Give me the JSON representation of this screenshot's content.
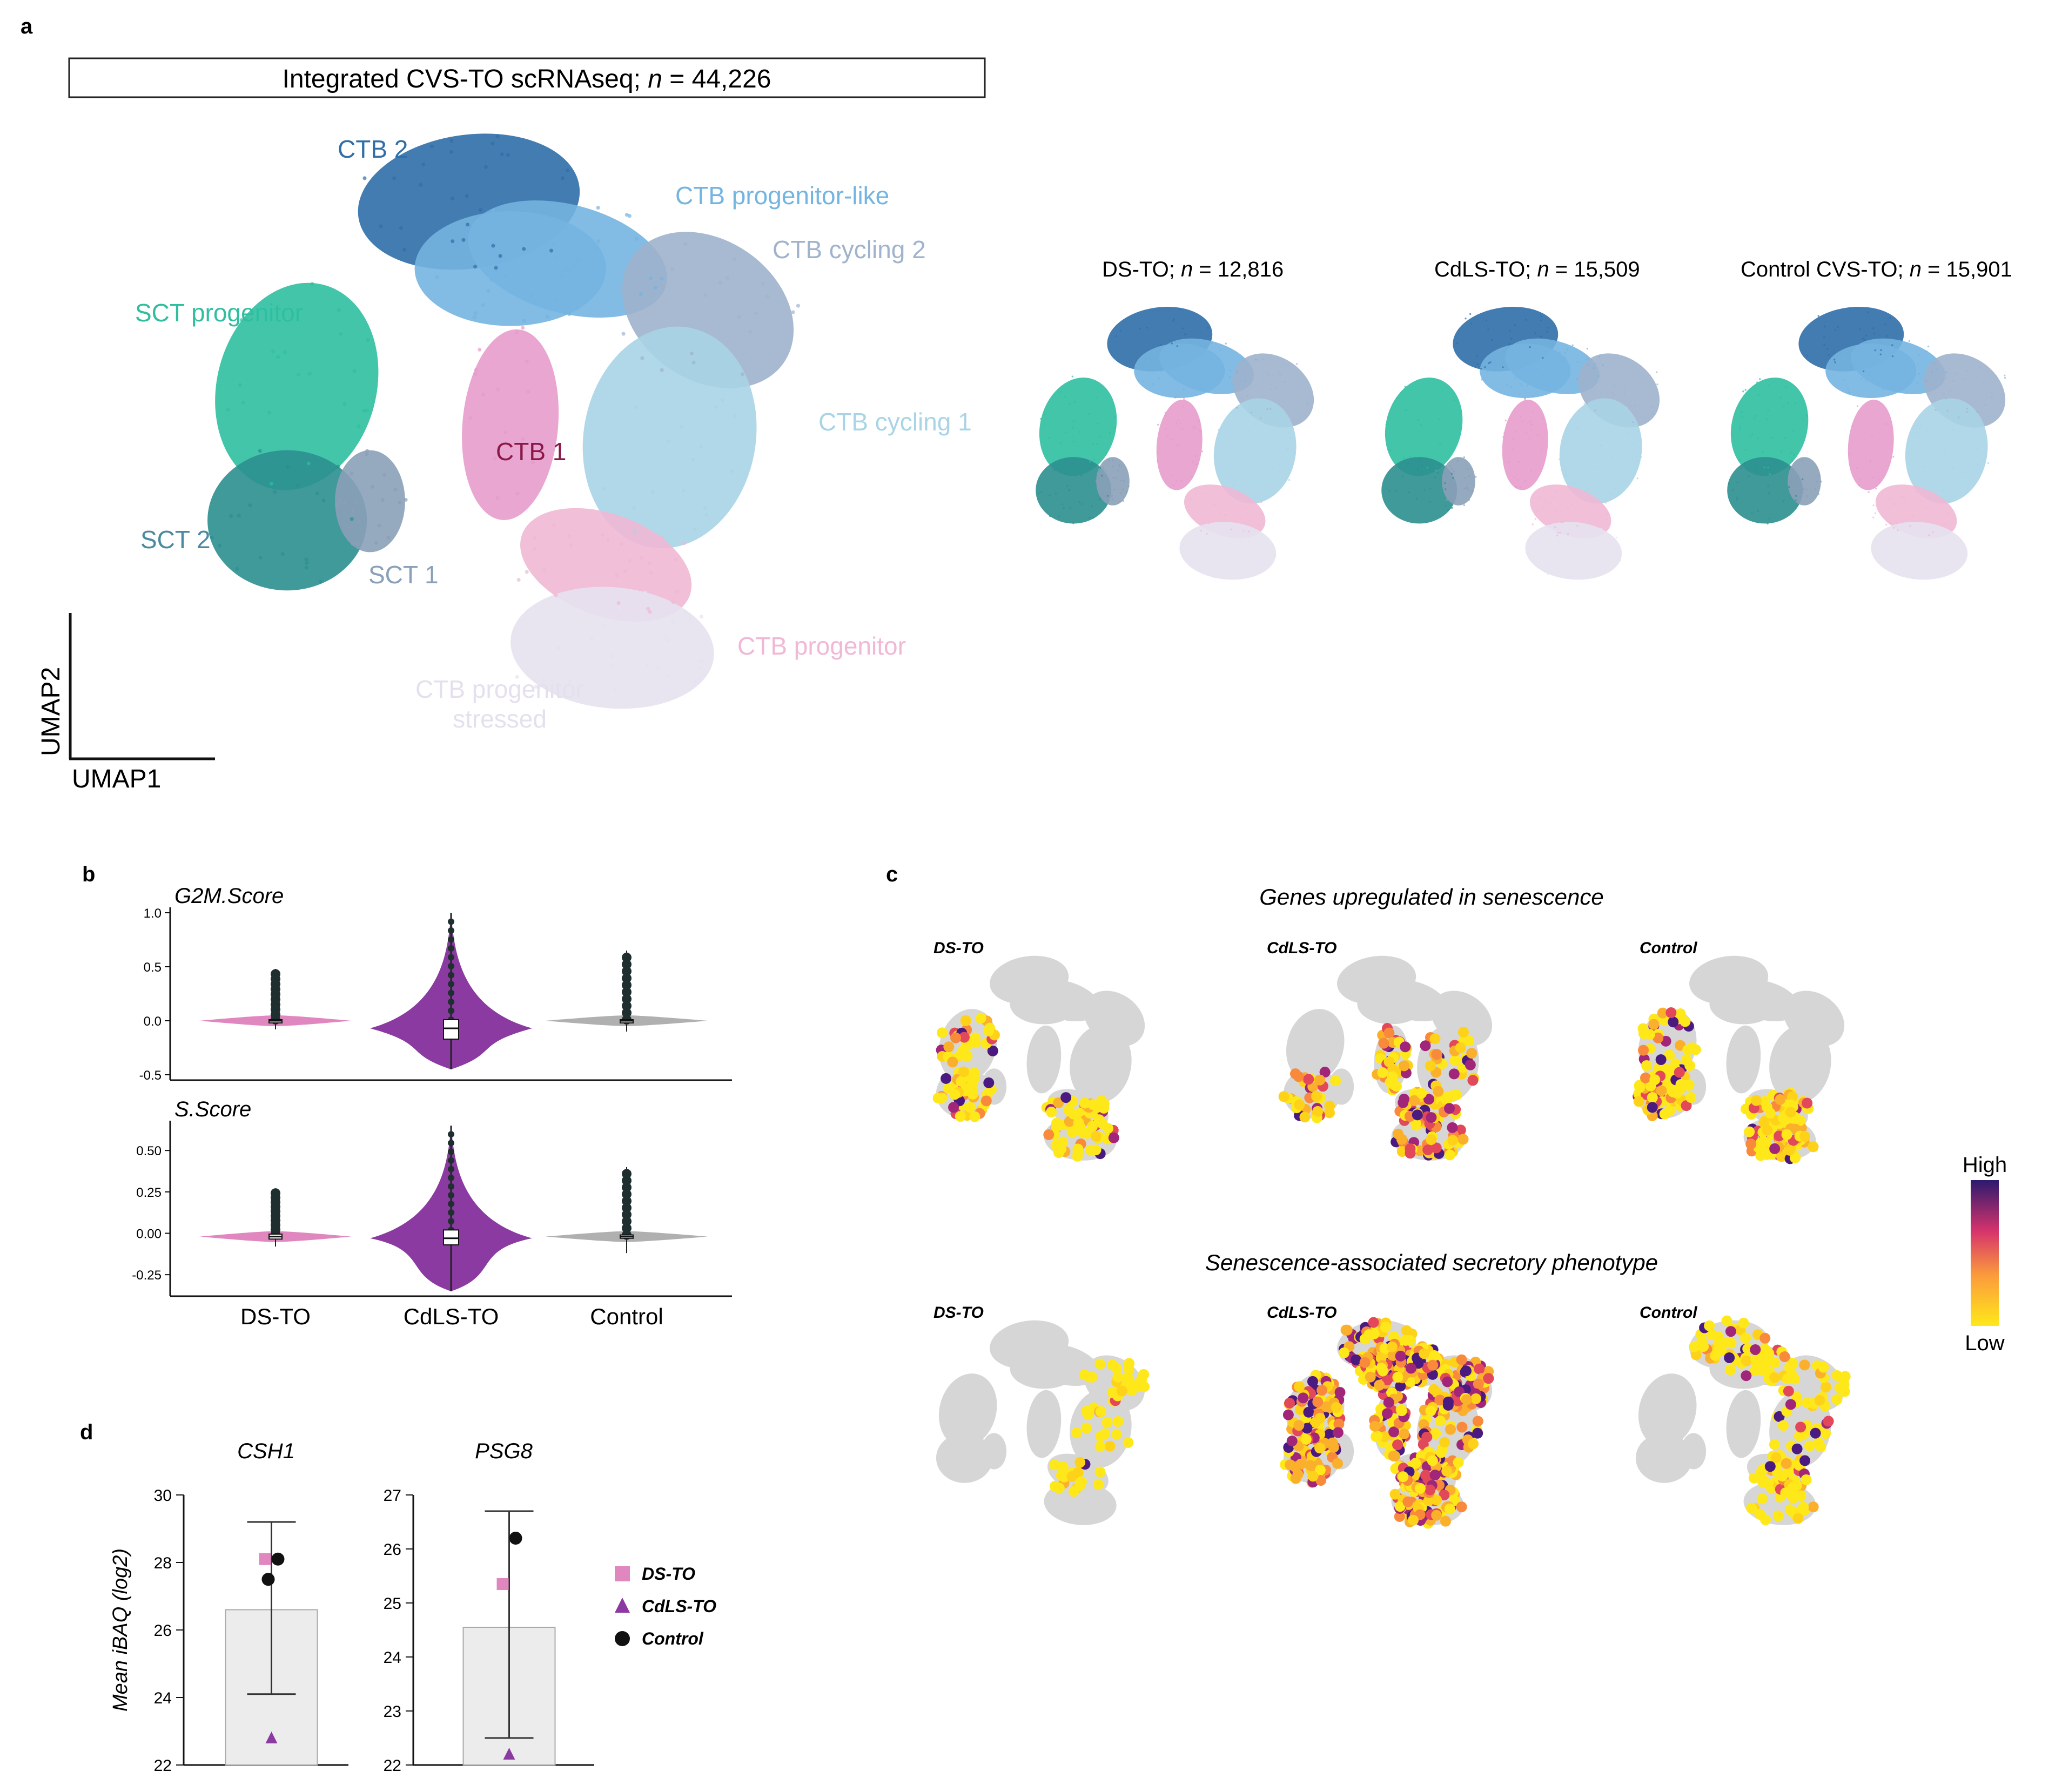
{
  "panel_labels": {
    "a": "a",
    "b": "b",
    "c": "c",
    "d": "d"
  },
  "colors": {
    "CTB 2": "#2f6ea8",
    "CTB progenitor-like": "#74b4e0",
    "CTB cycling 2": "#9fb3cc",
    "CTB cycling 1": "#a8d4e6",
    "SCT progenitor": "#2fbfa0",
    "SCT 2": "#2c8f8f",
    "SCT 1": "#8aa0b8",
    "CTB 1": "#e59ccb",
    "CTB progenitor": "#f0b8d4",
    "CTB progenitor stressed": "#e6e2f0",
    "DS-TO": "#e087c0",
    "CdLS-TO": "#8a3aa0",
    "Control": "#b0b0b0",
    "grey_cells": "#d6d6d6"
  },
  "panel_a": {
    "title_text": "Integrated CVS-TO scRNAseq; ",
    "title_n": "n",
    "title_value": " = 44,226",
    "axis_x": "UMAP1",
    "axis_y": "UMAP2",
    "clusters": [
      {
        "name": "CTB 2",
        "label": "CTB 2"
      },
      {
        "name": "CTB progenitor-like",
        "label": "CTB progenitor-like"
      },
      {
        "name": "CTB cycling 2",
        "label": "CTB cycling 2"
      },
      {
        "name": "SCT progenitor",
        "label": "SCT progenitor"
      },
      {
        "name": "CTB cycling 1",
        "label": "CTB cycling 1"
      },
      {
        "name": "CTB 1",
        "label": "CTB 1"
      },
      {
        "name": "SCT 2",
        "label": "SCT 2"
      },
      {
        "name": "SCT 1",
        "label": "SCT 1"
      },
      {
        "name": "CTB progenitor",
        "label": "CTB progenitor"
      },
      {
        "name": "CTB progenitor stressed",
        "label": "CTB progenitor",
        "label2": "stressed"
      }
    ],
    "subsets": [
      {
        "label": "DS-TO; ",
        "value": " = 12,816"
      },
      {
        "label": "CdLS-TO; ",
        "value": " = 15,509"
      },
      {
        "label": "Control CVS-TO; ",
        "value": " = 15,901"
      }
    ]
  },
  "chart_data": [
    {
      "id": "panel-b-g2m",
      "type": "violin",
      "title": "G2M.Score",
      "categories": [
        "DS-TO",
        "CdLS-TO",
        "Control"
      ],
      "ylim": [
        -0.55,
        1.05
      ],
      "yticks": [
        -0.5,
        0.0,
        0.5,
        1.0
      ],
      "ytick_labels": [
        "-0.5",
        "0.0",
        "0.5",
        "1.0"
      ],
      "series": [
        {
          "name": "DS-TO",
          "median": 0.0,
          "q1": -0.01,
          "q3": 0.01,
          "min": -0.08,
          "max": 0.48
        },
        {
          "name": "CdLS-TO",
          "median": -0.07,
          "q1": -0.17,
          "q3": 0.01,
          "min": -0.45,
          "max": 1.0
        },
        {
          "name": "Control",
          "median": 0.0,
          "q1": -0.01,
          "q3": 0.01,
          "min": -0.1,
          "max": 0.65
        }
      ]
    },
    {
      "id": "panel-b-s",
      "type": "violin",
      "title": "S.Score",
      "categories": [
        "DS-TO",
        "CdLS-TO",
        "Control"
      ],
      "xlabels": [
        "DS-TO",
        "CdLS-TO",
        "Control"
      ],
      "ylim": [
        -0.38,
        0.68
      ],
      "yticks": [
        -0.25,
        0.0,
        0.25,
        0.5
      ],
      "ytick_labels": [
        "-0.25",
        "0.00",
        "0.25",
        "0.50"
      ],
      "series": [
        {
          "name": "DS-TO",
          "median": -0.02,
          "q1": -0.035,
          "q3": -0.005,
          "min": -0.08,
          "max": 0.27
        },
        {
          "name": "CdLS-TO",
          "median": -0.03,
          "q1": -0.07,
          "q3": 0.02,
          "min": -0.35,
          "max": 0.65
        },
        {
          "name": "Control",
          "median": -0.02,
          "q1": -0.03,
          "q3": -0.01,
          "min": -0.12,
          "max": 0.4
        }
      ]
    },
    {
      "id": "panel-d-csh1",
      "type": "bar",
      "title": "CSH1",
      "ylabel": "Mean iBAQ (log2)",
      "ylim": [
        22,
        30
      ],
      "yticks": [
        22,
        24,
        26,
        28,
        30
      ],
      "ytick_labels": [
        "22",
        "24",
        "26",
        "28",
        "30"
      ],
      "mean": 26.6,
      "error": [
        24.1,
        29.2
      ],
      "points": [
        {
          "group": "DS-TO",
          "value": 28.1
        },
        {
          "group": "CdLS-TO",
          "value": 22.8
        },
        {
          "group": "Control",
          "value": 28.1
        },
        {
          "group": "Control",
          "value": 27.5
        }
      ]
    },
    {
      "id": "panel-d-psg8",
      "type": "bar",
      "title": "PSG8",
      "ylim": [
        22,
        27
      ],
      "yticks": [
        22,
        23,
        24,
        25,
        26,
        27
      ],
      "ytick_labels": [
        "22",
        "23",
        "24",
        "25",
        "26",
        "27"
      ],
      "mean": 24.55,
      "error": [
        22.5,
        26.7
      ],
      "points": [
        {
          "group": "DS-TO",
          "value": 25.35
        },
        {
          "group": "CdLS-TO",
          "value": 22.2
        },
        {
          "group": "Control",
          "value": 26.2
        }
      ]
    }
  ],
  "panel_c": {
    "row1_title": "Genes upregulated in senescence",
    "row2_title": "Senescence-associated secretory phenotype",
    "subtitles": [
      "DS-TO",
      "CdLS-TO",
      "Control"
    ],
    "colorbar_high": "High",
    "colorbar_low": "Low"
  },
  "panel_d": {
    "legend": [
      {
        "label": "DS-TO",
        "marker": "square"
      },
      {
        "label": "CdLS-TO",
        "marker": "triangle"
      },
      {
        "label": "Control",
        "marker": "circle"
      }
    ]
  }
}
